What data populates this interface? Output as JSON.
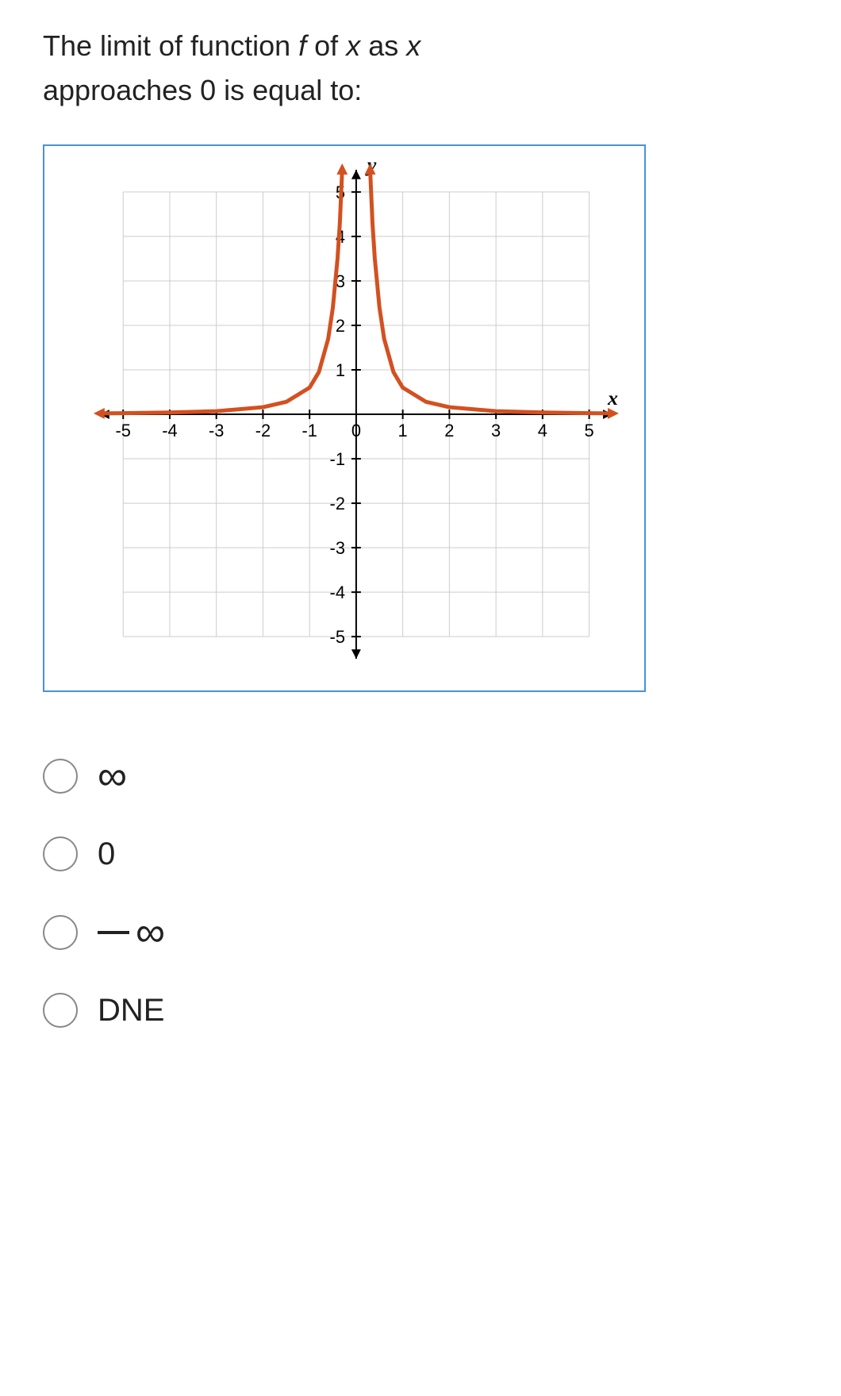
{
  "question": {
    "line1_pre": "The limit of function ",
    "line1_f": "f ",
    "line1_mid": "of ",
    "line1_x1": "x ",
    "line1_as": "as ",
    "line1_x2": "x",
    "line2": "approaches 0 is equal to:"
  },
  "chart": {
    "xlim": [
      -5.5,
      5.5
    ],
    "ylim": [
      -5.5,
      5.5
    ],
    "xticks": [
      -5,
      -4,
      -3,
      -2,
      -1,
      0,
      1,
      2,
      3,
      4,
      5
    ],
    "yticks": [
      -5,
      -4,
      -3,
      -2,
      -1,
      1,
      2,
      3,
      4,
      5
    ],
    "xtick_labels": [
      "-5",
      "-4",
      "-3",
      "-2",
      "-1",
      "0",
      "1",
      "2",
      "3",
      "4",
      "5"
    ],
    "ytick_labels": [
      "-5",
      "-4",
      "-3",
      "-2",
      "-1",
      "1",
      "2",
      "3",
      "4",
      "5"
    ],
    "x_axis_label": "x",
    "y_axis_label": "y",
    "grid_color": "#cccccc",
    "axis_color": "#000000",
    "curve_color": "#d35020",
    "curve_width": 5,
    "background_color": "#ffffff",
    "tick_font_size": 22,
    "label_font_size": 26,
    "label_font_style": "italic",
    "curve_points_left": [
      [
        -5.5,
        0.02
      ],
      [
        -5,
        0.025
      ],
      [
        -4,
        0.04
      ],
      [
        -3,
        0.07
      ],
      [
        -2,
        0.16
      ],
      [
        -1.5,
        0.28
      ],
      [
        -1,
        0.6
      ],
      [
        -0.8,
        0.95
      ],
      [
        -0.6,
        1.7
      ],
      [
        -0.5,
        2.4
      ],
      [
        -0.4,
        3.5
      ],
      [
        -0.35,
        4.3
      ],
      [
        -0.3,
        5.5
      ]
    ],
    "curve_points_right": [
      [
        0.3,
        5.5
      ],
      [
        0.35,
        4.3
      ],
      [
        0.4,
        3.5
      ],
      [
        0.5,
        2.4
      ],
      [
        0.6,
        1.7
      ],
      [
        0.8,
        0.95
      ],
      [
        1,
        0.6
      ],
      [
        1.5,
        0.28
      ],
      [
        2,
        0.16
      ],
      [
        3,
        0.07
      ],
      [
        4,
        0.04
      ],
      [
        5,
        0.025
      ],
      [
        5.5,
        0.02
      ]
    ]
  },
  "options": {
    "a": "∞",
    "b": "0",
    "c_minus": "−",
    "c_inf": "∞",
    "d": "DNE"
  }
}
